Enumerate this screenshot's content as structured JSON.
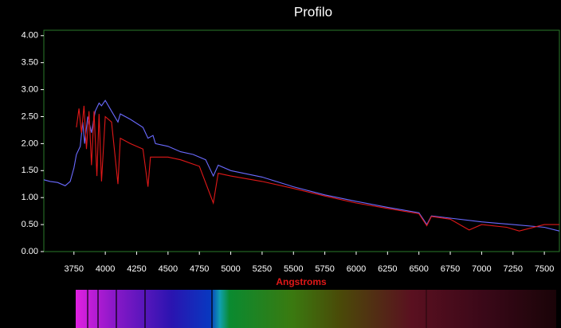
{
  "chart_data": {
    "type": "line",
    "title": "Profilo",
    "x_label": "Angstroms",
    "xlim": [
      3510,
      7620
    ],
    "ylim": [
      0,
      4.1
    ],
    "xticks": [
      3750,
      4000,
      4250,
      4500,
      4750,
      5000,
      5250,
      5500,
      5750,
      6000,
      6250,
      6500,
      6750,
      7000,
      7250,
      7500
    ],
    "yticks": [
      {
        "value": 0,
        "label": "0.00"
      },
      {
        "value": 0.5,
        "label": "0.50"
      },
      {
        "value": 1,
        "label": "1.00"
      },
      {
        "value": 1.5,
        "label": "1.50"
      },
      {
        "value": 2,
        "label": "2.00"
      },
      {
        "value": 2.5,
        "label": "2.50"
      },
      {
        "value": 3,
        "label": "3.00"
      },
      {
        "value": 3.5,
        "label": "3.50"
      },
      {
        "value": 4,
        "label": "4.00"
      }
    ],
    "series": [
      {
        "color": "#6a6aff",
        "x": [
          3510,
          3560,
          3620,
          3680,
          3720,
          3750,
          3770,
          3800,
          3820,
          3835,
          3860,
          3890,
          3920,
          3950,
          3970,
          4000,
          4050,
          4101,
          4120,
          4200,
          4300,
          4340,
          4380,
          4400,
          4500,
          4600,
          4700,
          4800,
          4861,
          4900,
          5000,
          5250,
          5500,
          5750,
          6000,
          6250,
          6500,
          6563,
          6600,
          6750,
          7000,
          7250,
          7500,
          7620
        ],
        "values": [
          1.33,
          1.3,
          1.28,
          1.22,
          1.3,
          1.55,
          1.8,
          1.95,
          2.4,
          2.0,
          2.5,
          2.2,
          2.6,
          2.75,
          2.7,
          2.8,
          2.6,
          2.4,
          2.55,
          2.45,
          2.3,
          2.1,
          2.15,
          2.0,
          1.95,
          1.85,
          1.8,
          1.7,
          1.4,
          1.6,
          1.5,
          1.38,
          1.2,
          1.05,
          0.93,
          0.82,
          0.72,
          0.5,
          0.66,
          0.62,
          0.55,
          0.5,
          0.45,
          0.38
        ]
      },
      {
        "color": "#e01818",
        "x": [
          3770,
          3790,
          3810,
          3830,
          3850,
          3870,
          3890,
          3910,
          3933,
          3950,
          3970,
          4000,
          4050,
          4101,
          4120,
          4200,
          4300,
          4340,
          4360,
          4500,
          4600,
          4750,
          4861,
          4900,
          5000,
          5250,
          5500,
          5750,
          6000,
          6250,
          6500,
          6563,
          6600,
          6750,
          6900,
          7000,
          7200,
          7300,
          7500,
          7620
        ],
        "values": [
          2.3,
          2.65,
          2.2,
          2.7,
          1.9,
          2.6,
          1.6,
          2.6,
          1.4,
          2.55,
          1.3,
          2.5,
          2.4,
          1.25,
          2.1,
          2.0,
          1.9,
          1.2,
          1.75,
          1.75,
          1.7,
          1.58,
          0.9,
          1.45,
          1.4,
          1.3,
          1.17,
          1.03,
          0.9,
          0.8,
          0.7,
          0.48,
          0.65,
          0.6,
          0.4,
          0.5,
          0.45,
          0.38,
          0.5,
          0.5
        ]
      }
    ]
  }
}
